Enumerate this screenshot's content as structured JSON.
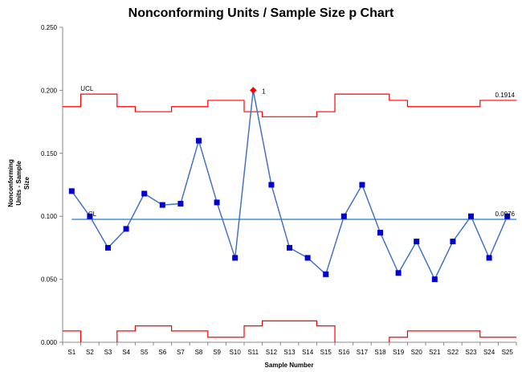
{
  "chart_data": {
    "type": "line",
    "title": "Nonconforming Units / Sample Size p Chart",
    "xlabel": "Sample Number",
    "ylabel_lines": [
      "Nonconforming",
      "Units - Sample",
      "Size"
    ],
    "ylim": [
      0,
      0.25
    ],
    "yticks": [
      "0.000",
      "0.050",
      "0.100",
      "0.150",
      "0.200",
      "0.250"
    ],
    "ytick_values": [
      0,
      0.05,
      0.1,
      0.15,
      0.2,
      0.25
    ],
    "categories": [
      "S1",
      "S2",
      "S3",
      "S4",
      "S5",
      "S6",
      "S7",
      "S8",
      "S9",
      "S10",
      "S11",
      "S12",
      "S13",
      "S14",
      "S15",
      "S16",
      "S17",
      "S18",
      "S19",
      "S20",
      "S21",
      "S22",
      "S23",
      "S24",
      "S25"
    ],
    "series": [
      {
        "values": [
          0.12,
          0.1,
          0.075,
          0.09,
          0.118,
          0.109,
          0.11,
          0.16,
          0.111,
          0.067,
          0.2,
          0.125,
          0.075,
          0.067,
          0.054,
          0.1,
          0.125,
          0.087,
          0.055,
          0.08,
          0.05,
          0.08,
          0.1,
          0.067,
          0.1
        ],
        "color": "#4472c4",
        "marker_color": "#0000cc"
      }
    ],
    "out_of_control": [
      {
        "index": 10,
        "label": "1",
        "color": "#ff0000"
      }
    ],
    "center_line": {
      "label": "CL",
      "value": 0.0976,
      "value_label": "0.0976",
      "color": "#4a90c8"
    },
    "ucl": {
      "label": "UCL",
      "value_label": "0.1914",
      "color": "#ff0000",
      "values": [
        0.187,
        0.197,
        0.197,
        0.187,
        0.183,
        0.183,
        0.187,
        0.187,
        0.192,
        0.192,
        0.183,
        0.179,
        0.179,
        0.179,
        0.183,
        0.197,
        0.197,
        0.197,
        0.192,
        0.187,
        0.187,
        0.187,
        0.187,
        0.192,
        0.192
      ]
    },
    "lcl": {
      "color": "#ff0000",
      "values": [
        0.009,
        0.0,
        0.0,
        0.009,
        0.013,
        0.013,
        0.009,
        0.009,
        0.004,
        0.004,
        0.013,
        0.017,
        0.017,
        0.017,
        0.013,
        0.0,
        0.0,
        0.0,
        0.004,
        0.009,
        0.009,
        0.009,
        0.009,
        0.004,
        0.004
      ]
    },
    "grid": false,
    "legend": "none"
  }
}
